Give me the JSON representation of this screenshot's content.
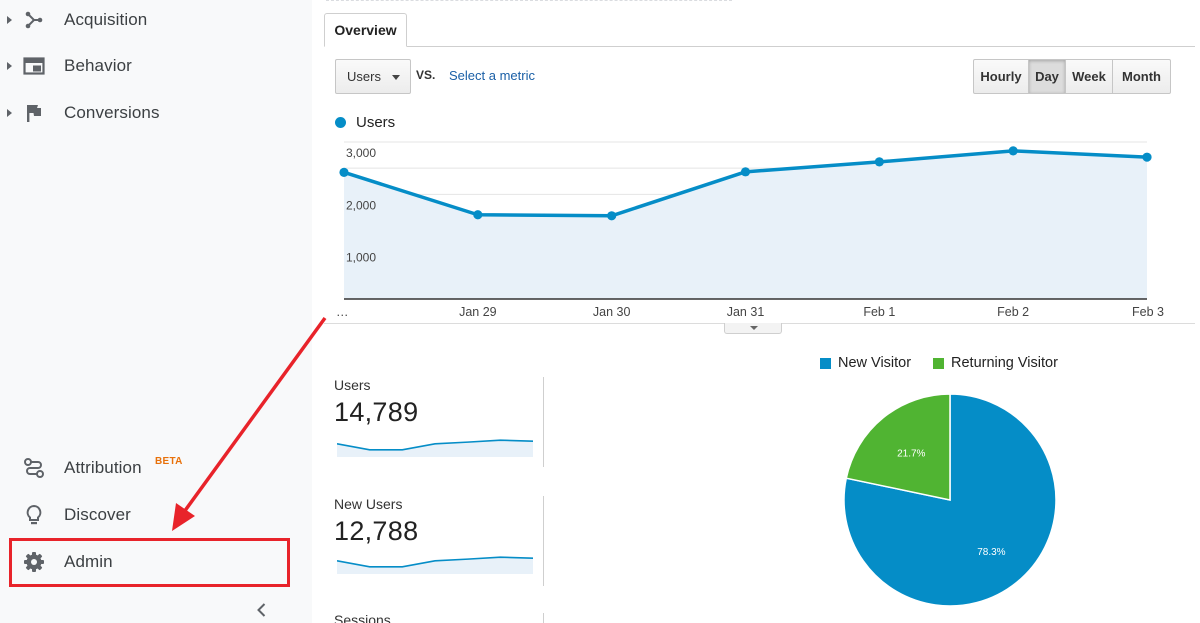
{
  "sidebar": {
    "items": [
      {
        "label": "Acquisition",
        "icon": "acquisition-icon"
      },
      {
        "label": "Behavior",
        "icon": "behavior-icon"
      },
      {
        "label": "Conversions",
        "icon": "flag-icon"
      }
    ],
    "bottom_items": [
      {
        "label": "Attribution",
        "icon": "attribution-icon",
        "badge": "BETA"
      },
      {
        "label": "Discover",
        "icon": "lightbulb-icon"
      },
      {
        "label": "Admin",
        "icon": "gear-icon"
      }
    ],
    "collapse_icon": "chevron-left-icon",
    "highlight_color": "#e8232a"
  },
  "toolbar": {
    "tab_label": "Overview",
    "metric_select": "Users",
    "vs_label": "VS.",
    "select_metric_link": "Select a metric",
    "periods": [
      "Hourly",
      "Day",
      "Week",
      "Month"
    ],
    "active_period": "Day"
  },
  "chart_legend": {
    "series": "Users",
    "color": "#058dc7"
  },
  "chart_data": [
    {
      "type": "line",
      "series": [
        {
          "name": "Users",
          "values": [
            2420,
            1610,
            1590,
            2430,
            2620,
            2830,
            2710
          ]
        }
      ],
      "x": [
        "…",
        "Jan 29",
        "Jan 30",
        "Jan 31",
        "Feb 1",
        "Feb 2",
        "Feb 3"
      ],
      "yticks": [
        "1,000",
        "2,000",
        "3,000"
      ],
      "ylim": [
        0,
        3000
      ],
      "grid": true,
      "legend": "top-left",
      "color": "#058dc7",
      "fill": "#e8f1f9"
    },
    {
      "type": "pie",
      "categories": [
        "New Visitor",
        "Returning Visitor"
      ],
      "values": [
        78.3,
        21.7
      ],
      "labels": [
        "78.3%",
        "21.7%"
      ],
      "colors": [
        "#058dc7",
        "#50b432"
      ],
      "legend": "top"
    }
  ],
  "cards": [
    {
      "label": "Users",
      "value": "14,789"
    },
    {
      "label": "New Users",
      "value": "12,788"
    },
    {
      "label": "Sessions",
      "value": ""
    }
  ],
  "sparklines": [
    [
      0.55,
      0.3,
      0.3,
      0.55,
      0.62,
      0.7,
      0.66
    ],
    [
      0.55,
      0.3,
      0.3,
      0.55,
      0.62,
      0.7,
      0.66
    ]
  ]
}
